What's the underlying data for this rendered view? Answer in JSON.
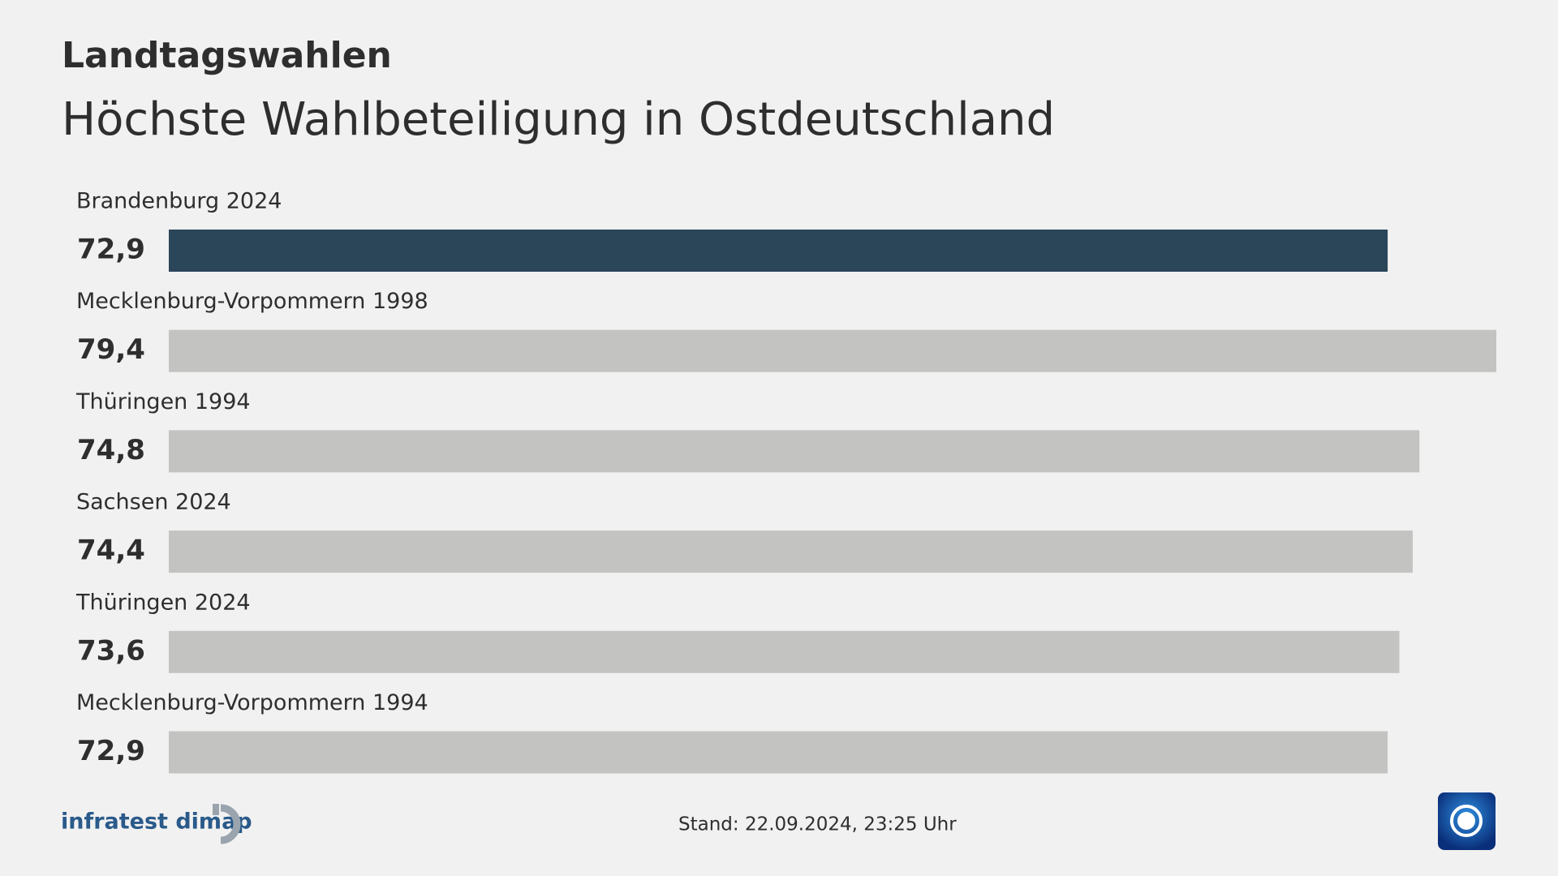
{
  "chart_data": {
    "type": "bar",
    "orientation": "horizontal",
    "supertitle": "Landtagswahlen",
    "title": "Höchste Wahlbeteiligung in Ostdeutschland",
    "categories": [
      "Brandenburg 2024",
      "Mecklenburg-Vorpommern 1998",
      "Thüringen 1994",
      "Sachsen 2024",
      "Thüringen 2024",
      "Mecklenburg-Vorpommern 1994"
    ],
    "values": [
      72.9,
      79.4,
      74.8,
      74.4,
      73.6,
      72.9
    ],
    "value_labels": [
      "72,9",
      "79,4",
      "74,8",
      "74,4",
      "73,6",
      "72,9"
    ],
    "colors": [
      "#2b4559",
      "#c3c3c2",
      "#c3c3c2",
      "#c3c3c2",
      "#c3c3c2",
      "#c3c3c2"
    ],
    "source": "infratest dimap",
    "timestamp": "Stand:  22.09.2024, 23:25 Uhr"
  }
}
